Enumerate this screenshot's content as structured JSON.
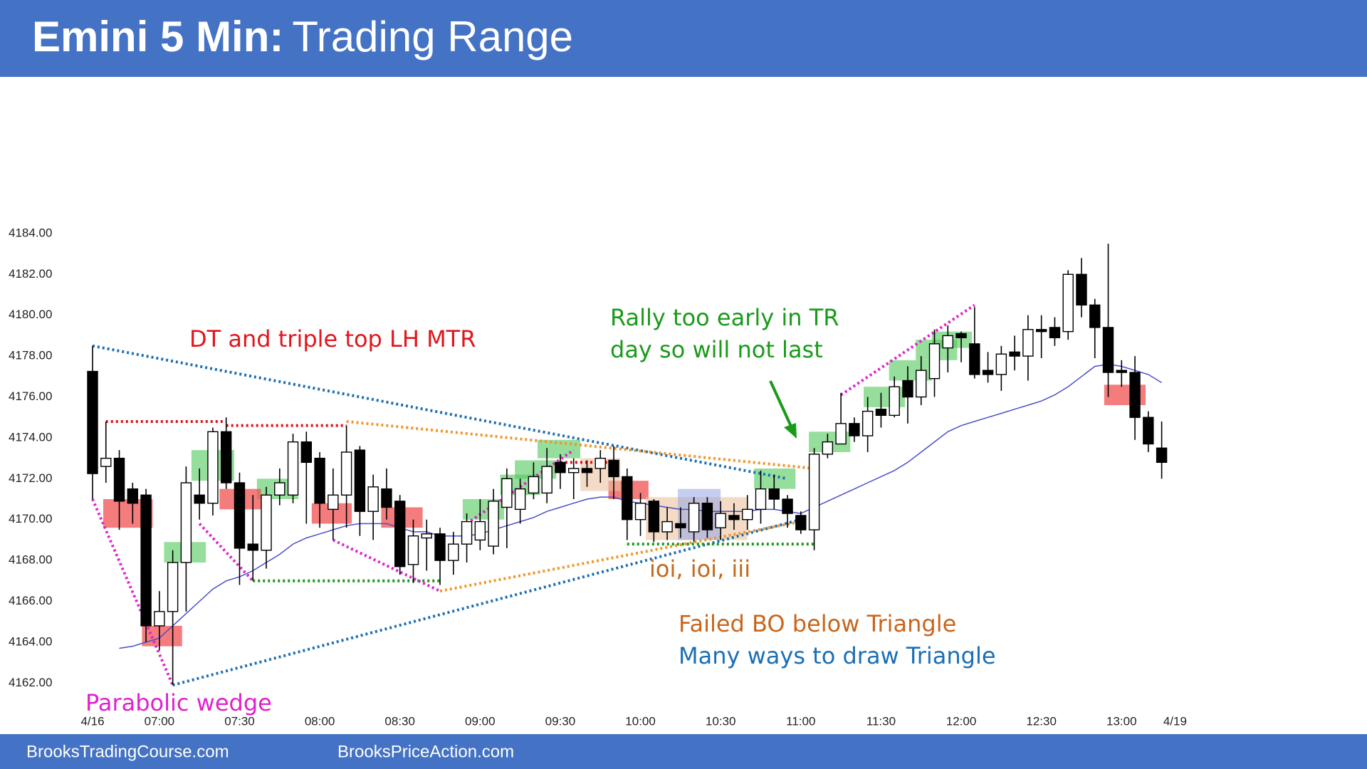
{
  "chart_data": {
    "type": "candlestick",
    "title": "Emini 5 Min:",
    "subtitle": "Trading Range",
    "categories": [
      "4/16",
      null,
      null,
      null,
      null,
      "07:00",
      null,
      null,
      null,
      null,
      null,
      "07:30",
      null,
      null,
      null,
      null,
      null,
      "08:00",
      null,
      null,
      null,
      null,
      null,
      "08:30",
      null,
      null,
      null,
      null,
      null,
      "09:00",
      null,
      null,
      null,
      null,
      null,
      "09:30",
      null,
      null,
      null,
      null,
      null,
      "10:00",
      null,
      null,
      null,
      null,
      null,
      "10:30",
      null,
      null,
      null,
      null,
      null,
      "11:00",
      null,
      null,
      null,
      null,
      null,
      "11:30",
      null,
      null,
      null,
      null,
      null,
      "12:00",
      null,
      null,
      null,
      null,
      null,
      "12:30",
      null,
      null,
      null,
      null,
      null,
      "13:00",
      null,
      null,
      null,
      "4/19"
    ],
    "open": [
      4177.25,
      4172.6,
      4173.0,
      4171.5,
      4171.2,
      4164.8,
      4165.5,
      4167.9,
      4171.2,
      4170.8,
      4174.3,
      4171.8,
      4168.8,
      4168.5,
      4171.2,
      4171.2,
      4173.8,
      4173.0,
      4170.5,
      4171.2,
      4173.4,
      4170.4,
      4171.5,
      4170.9,
      4167.8,
      4169.1,
      4169.3,
      4168.0,
      4168.8,
      4169.0,
      4168.7,
      4170.6,
      4170.5,
      4171.3,
      4171.3,
      4172.8,
      4172.3,
      4172.5,
      4172.5,
      4172.9,
      4172.1,
      4170.0,
      4170.9,
      4169.4,
      4169.8,
      4169.4,
      4170.8,
      4169.6,
      4170.2,
      4170.0,
      4170.5,
      4171.5,
      4171.0,
      4170.2,
      4169.5,
      4173.2,
      4173.7,
      4174.7,
      4174.1,
      4175.4,
      4175.1,
      4176.8,
      4176.0,
      4176.9,
      4178.4,
      4179.1,
      4178.6,
      4177.3,
      4177.1,
      4178.2,
      4178.0,
      4179.3,
      4179.4,
      4179.2,
      4182.0,
      4180.5,
      4179.4,
      4177.3,
      4177.2,
      4175.0,
      4173.5,
      null
    ],
    "high": [
      4178.5,
      4174.8,
      4173.4,
      4171.8,
      4171.5,
      4166.5,
      4168.5,
      4172.6,
      4172.5,
      4174.5,
      4175.0,
      4172.3,
      4171.2,
      4171.6,
      4172.5,
      4174.2,
      4174.3,
      4173.3,
      4172.5,
      4174.6,
      4173.6,
      4172.2,
      4172.5,
      4171.2,
      4170.0,
      4170.0,
      4169.6,
      4169.4,
      4170.3,
      4171.0,
      4171.5,
      4172.5,
      4172.0,
      4172.8,
      4173.5,
      4173.2,
      4173.0,
      4172.9,
      4173.4,
      4173.6,
      4172.5,
      4171.3,
      4171.0,
      4170.6,
      4170.6,
      4171.1,
      4171.1,
      4170.9,
      4170.8,
      4171.2,
      4172.4,
      4172.2,
      4171.2,
      4170.4,
      4173.5,
      4174.2,
      4176.2,
      4175.0,
      4176.0,
      4176.2,
      4177.0,
      4177.5,
      4178.0,
      4179.3,
      4179.5,
      4179.2,
      4180.4,
      4178.2,
      4178.5,
      4179.0,
      4180.0,
      4180.0,
      4179.9,
      4182.2,
      4182.8,
      4180.8,
      4183.5,
      4177.8,
      4178.0,
      4175.3,
      4174.8,
      null
    ],
    "low": [
      4171.0,
      4171.8,
      4169.5,
      4169.8,
      4164.0,
      4163.6,
      4161.9,
      4165.5,
      4170.0,
      4170.2,
      4171.5,
      4166.8,
      4167.0,
      4167.6,
      4170.7,
      4170.8,
      4169.8,
      4169.6,
      4169.0,
      4169.6,
      4169.2,
      4169.0,
      4170.0,
      4167.3,
      4166.9,
      4167.5,
      4166.8,
      4167.3,
      4167.9,
      4168.5,
      4168.3,
      4168.6,
      4169.8,
      4171.0,
      4170.8,
      4171.5,
      4171.0,
      4171.6,
      4171.8,
      4171.0,
      4169.0,
      4169.2,
      4168.9,
      4169.0,
      4169.1,
      4168.9,
      4169.1,
      4169.0,
      4169.5,
      4169.5,
      4169.8,
      4170.5,
      4169.6,
      4169.3,
      4168.5,
      4173.0,
      4173.7,
      4173.8,
      4173.3,
      4174.5,
      4175.0,
      4174.7,
      4175.6,
      4176.0,
      4177.2,
      4177.7,
      4176.9,
      4176.7,
      4176.3,
      4177.3,
      4176.8,
      4177.9,
      4178.5,
      4178.8,
      4179.9,
      4177.9,
      4176.0,
      4176.5,
      4173.9,
      4173.3,
      4172.0,
      null
    ],
    "close": [
      4172.25,
      4173.0,
      4170.9,
      4170.8,
      4164.8,
      4165.5,
      4167.9,
      4171.8,
      4170.8,
      4174.3,
      4171.8,
      4168.6,
      4168.5,
      4171.2,
      4171.8,
      4173.8,
      4172.8,
      4170.8,
      4171.2,
      4173.3,
      4170.4,
      4171.6,
      4170.6,
      4167.7,
      4169.2,
      4169.3,
      4168.0,
      4168.8,
      4169.9,
      4169.9,
      4170.9,
      4172.0,
      4171.5,
      4172.1,
      4172.6,
      4172.3,
      4172.5,
      4172.3,
      4173.0,
      4172.1,
      4170.0,
      4170.8,
      4169.4,
      4169.9,
      4169.6,
      4170.8,
      4169.5,
      4170.3,
      4170.0,
      4170.5,
      4171.5,
      4171.0,
      4170.3,
      4169.5,
      4173.2,
      4173.8,
      4174.7,
      4174.1,
      4175.3,
      4175.1,
      4176.5,
      4176.0,
      4177.3,
      4178.6,
      4179.0,
      4178.9,
      4177.1,
      4177.1,
      4178.1,
      4178.0,
      4179.3,
      4179.2,
      4178.9,
      4182.0,
      4180.5,
      4179.4,
      4177.2,
      4177.2,
      4175.0,
      4173.7,
      4172.8,
      null
    ],
    "up_color": "#ffffff",
    "down_color": "#000000",
    "ma": {
      "color": "#4a4fc8",
      "values": [
        null,
        null,
        4163.7,
        4163.8,
        4164.0,
        4164.2,
        4164.8,
        4165.4,
        4166.0,
        4166.6,
        4167.0,
        4167.2,
        4167.5,
        4167.9,
        4168.3,
        4168.8,
        4169.1,
        4169.3,
        4169.5,
        4169.7,
        4169.8,
        4169.8,
        4169.8,
        4169.6,
        4169.4,
        4169.4,
        4169.2,
        4169.2,
        4169.2,
        4169.3,
        4169.5,
        4169.7,
        4169.9,
        4170.1,
        4170.4,
        4170.6,
        4170.8,
        4171.0,
        4171.1,
        4171.1,
        4170.9,
        4170.8,
        4170.7,
        4170.6,
        4170.5,
        4170.5,
        4170.4,
        4170.4,
        4170.4,
        4170.4,
        4170.5,
        4170.5,
        4170.4,
        4170.3,
        4170.6,
        4170.9,
        4171.2,
        4171.5,
        4171.8,
        4172.1,
        4172.4,
        4172.8,
        4173.3,
        4173.8,
        4174.3,
        4174.6,
        4174.8,
        4175.0,
        4175.2,
        4175.4,
        4175.6,
        4175.8,
        4176.1,
        4176.5,
        4177.0,
        4177.5,
        4177.6,
        4177.5,
        4177.3,
        4177.1,
        4176.7,
        null
      ]
    },
    "ylim": [
      4161,
      4191
    ],
    "yticks": [
      {
        "value": 4162,
        "label": "4162.00"
      },
      {
        "value": 4164,
        "label": "4164.00"
      },
      {
        "value": 4166,
        "label": "4166.00"
      },
      {
        "value": 4168,
        "label": "4168.00"
      },
      {
        "value": 4170,
        "label": "4170.00"
      },
      {
        "value": 4172,
        "label": "4172.00"
      },
      {
        "value": 4174,
        "label": "4174.00"
      },
      {
        "value": 4176,
        "label": "4176.00"
      },
      {
        "value": 4178,
        "label": "4178.00"
      },
      {
        "value": 4180,
        "label": "4180.00"
      },
      {
        "value": 4182,
        "label": "4182.00"
      },
      {
        "value": 4184,
        "label": "4184.00"
      }
    ],
    "zones": [
      {
        "color": "rgba(80,200,90,0.6)",
        "x": [
          5.35,
          8.48
        ],
        "y": [
          4167.9,
          4168.9
        ]
      },
      {
        "color": "rgba(80,200,90,0.6)",
        "x": [
          7.4,
          10.6
        ],
        "y": [
          4171.9,
          4173.4
        ]
      },
      {
        "color": "rgba(80,200,90,0.6)",
        "x": [
          12.3,
          15.4
        ],
        "y": [
          4171.0,
          4172.0
        ]
      },
      {
        "color": "rgba(80,200,90,0.6)",
        "x": [
          27.7,
          30.8
        ],
        "y": [
          4170.0,
          4171.0
        ]
      },
      {
        "color": "rgba(80,200,90,0.6)",
        "x": [
          30.5,
          33.5
        ],
        "y": [
          4171.2,
          4172.2
        ]
      },
      {
        "color": "rgba(80,200,90,0.6)",
        "x": [
          31.6,
          34.7
        ],
        "y": [
          4172.0,
          4172.9
        ]
      },
      {
        "color": "rgba(80,200,90,0.6)",
        "x": [
          33.3,
          36.5
        ],
        "y": [
          4173.0,
          4173.9
        ]
      },
      {
        "color": "rgba(80,200,90,0.6)",
        "x": [
          49.5,
          52.6
        ],
        "y": [
          4171.5,
          4172.5
        ]
      },
      {
        "color": "rgba(80,200,90,0.6)",
        "x": [
          53.6,
          56.7
        ],
        "y": [
          4173.3,
          4174.3
        ]
      },
      {
        "color": "rgba(80,200,90,0.6)",
        "x": [
          57.7,
          60.8
        ],
        "y": [
          4175.5,
          4176.5
        ]
      },
      {
        "color": "rgba(80,200,90,0.6)",
        "x": [
          59.6,
          62.8
        ],
        "y": [
          4176.8,
          4177.8
        ]
      },
      {
        "color": "rgba(80,200,90,0.6)",
        "x": [
          61.6,
          64.7
        ],
        "y": [
          4177.8,
          4178.8
        ]
      },
      {
        "color": "rgba(80,200,90,0.6)",
        "x": [
          62.8,
          65.8
        ],
        "y": [
          4178.4,
          4179.2
        ]
      },
      {
        "color": "rgba(240,80,80,0.75)",
        "x": [
          0.8,
          4.5
        ],
        "y": [
          4169.6,
          4171.0
        ]
      },
      {
        "color": "rgba(240,80,80,0.75)",
        "x": [
          3.7,
          6.7
        ],
        "y": [
          4163.8,
          4164.8
        ]
      },
      {
        "color": "rgba(240,80,80,0.75)",
        "x": [
          9.5,
          12.6
        ],
        "y": [
          4170.5,
          4171.5
        ]
      },
      {
        "color": "rgba(240,80,80,0.75)",
        "x": [
          16.4,
          19.4
        ],
        "y": [
          4169.8,
          4170.8
        ]
      },
      {
        "color": "rgba(240,80,80,0.75)",
        "x": [
          21.6,
          24.7
        ],
        "y": [
          4169.6,
          4170.6
        ]
      },
      {
        "color": "rgba(240,80,80,0.75)",
        "x": [
          38.6,
          41.6
        ],
        "y": [
          4171.0,
          4171.9
        ]
      },
      {
        "color": "rgba(240,80,80,0.75)",
        "x": [
          75.7,
          78.8
        ],
        "y": [
          4175.6,
          4176.6
        ]
      },
      {
        "color": "rgba(235,195,160,0.6)",
        "x": [
          36.5,
          39.5
        ],
        "y": [
          4171.4,
          4173.0
        ]
      },
      {
        "color": "rgba(235,195,160,0.6)",
        "x": [
          41.4,
          49.0
        ],
        "y": [
          4169.0,
          4171.1
        ]
      },
      {
        "color": "rgba(150,165,230,0.55)",
        "x": [
          43.8,
          47.0
        ],
        "y": [
          4169.0,
          4171.5
        ]
      }
    ],
    "trendlines": [
      {
        "color": "#1f6fb0",
        "from": [
          0,
          4178.5
        ],
        "to": [
          52,
          4172.0
        ]
      },
      {
        "color": "#1f6fb0",
        "from": [
          6,
          4161.9
        ],
        "to": [
          53,
          4170.0
        ]
      },
      {
        "color": "#f0962a",
        "from": [
          19,
          4174.8
        ],
        "to": [
          54,
          4172.5
        ]
      },
      {
        "color": "#f0962a",
        "from": [
          26,
          4166.5
        ],
        "to": [
          53,
          4169.9
        ]
      },
      {
        "color": "#e0161b",
        "from": [
          1,
          4174.8
        ],
        "to": [
          10,
          4174.8
        ]
      },
      {
        "color": "#e0161b",
        "from": [
          10,
          4174.6
        ],
        "to": [
          19,
          4174.6
        ]
      },
      {
        "color": "#e0161b",
        "from": [
          35,
          4172.8
        ],
        "to": [
          39,
          4172.8
        ]
      },
      {
        "color": "#1a9a1a",
        "from": [
          12,
          4167.0
        ],
        "to": [
          26,
          4167.0
        ]
      },
      {
        "color": "#1a9a1a",
        "from": [
          40,
          4168.8
        ],
        "to": [
          54,
          4168.8
        ]
      },
      {
        "color": "#e020d0",
        "from": [
          0,
          4171.0
        ],
        "to": [
          6,
          4161.9
        ]
      },
      {
        "color": "#e020d0",
        "from": [
          8,
          4169.8
        ],
        "to": [
          12,
          4167.0
        ]
      },
      {
        "color": "#e020d0",
        "from": [
          18,
          4169.0
        ],
        "to": [
          26,
          4166.5
        ]
      },
      {
        "color": "#e020d0",
        "from": [
          28,
          4169.8
        ],
        "to": [
          36,
          4173.4
        ]
      },
      {
        "color": "#e020d0",
        "from": [
          56,
          4176.1
        ],
        "to": [
          66,
          4180.5
        ]
      }
    ],
    "annotations": [
      "DT and triple top LH MTR",
      "Rally too early in TR",
      "day so will not last",
      "ioi, ioi, iii",
      "Failed BO below Triangle",
      "Many ways to draw Triangle",
      "Parabolic wedge"
    ]
  },
  "footer": [
    "BrooksTradingCourse.com",
    "BrooksPriceAction.com"
  ]
}
